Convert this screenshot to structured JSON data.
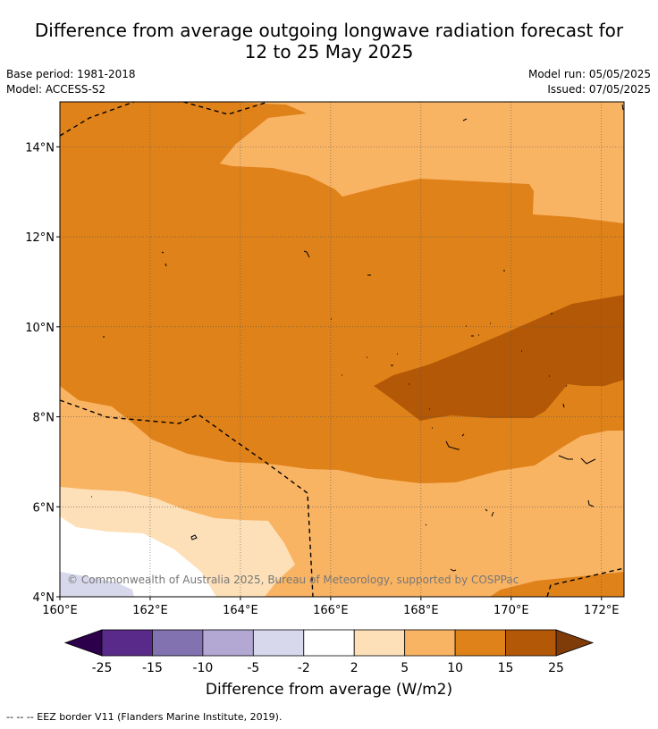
{
  "title": "Difference from average outgoing longwave radiation forecast for 12 to 25 May 2025",
  "title_lines": [
    "Difference from average outgoing longwave radiation forecast for",
    "12 to 25 May 2025"
  ],
  "base_period": "Base period: 1981-2018",
  "model": "Model: ACCESS-S2",
  "model_run": "Model run: 05/05/2025",
  "issued": "Issued: 07/05/2025",
  "map": {
    "lon_range": [
      160,
      172.5
    ],
    "lat_range": [
      4,
      15
    ],
    "x_ticks": [
      "160°E",
      "162°E",
      "164°E",
      "166°E",
      "168°E",
      "170°E",
      "172°E"
    ],
    "x_tick_values": [
      160,
      162,
      164,
      166,
      168,
      170,
      172
    ],
    "y_ticks": [
      "4°N",
      "6°N",
      "8°N",
      "10°N",
      "12°N",
      "14°N"
    ],
    "y_tick_values": [
      4,
      6,
      8,
      10,
      12,
      14
    ],
    "gridlines": true,
    "copyright": "© Commonwealth of Australia 2025, Bureau of Meteorology, supported by COSPPac"
  },
  "colorbar": {
    "boundaries": [
      -25,
      -15,
      -10,
      -5,
      -2,
      2,
      5,
      10,
      15,
      25
    ],
    "tick_labels": [
      "-25",
      "-15",
      "-10",
      "-5",
      "-2",
      "2",
      "5",
      "10",
      "15",
      "25"
    ],
    "colors": [
      "#5a2a8a",
      "#8273b0",
      "#b2a8d3",
      "#d8d8ec",
      "#ffffff",
      "#fde0b8",
      "#f9b463",
      "#e0821a",
      "#b35806"
    ],
    "extend_low_color": "#2d004b",
    "extend_high_color": "#7f3b08",
    "label": "Difference from average (W/m2)"
  },
  "legend_note": "-- -- -- EEZ border V11 (Flanders Marine Institute, 2019)."
}
